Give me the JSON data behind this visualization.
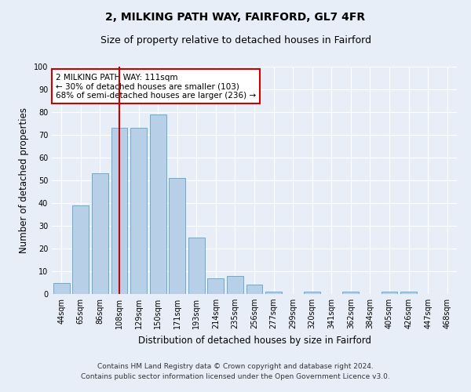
{
  "title_line1": "2, MILKING PATH WAY, FAIRFORD, GL7 4FR",
  "title_line2": "Size of property relative to detached houses in Fairford",
  "xlabel": "Distribution of detached houses by size in Fairford",
  "ylabel": "Number of detached properties",
  "footnote_line1": "Contains HM Land Registry data © Crown copyright and database right 2024.",
  "footnote_line2": "Contains public sector information licensed under the Open Government Licence v3.0.",
  "bar_labels": [
    "44sqm",
    "65sqm",
    "86sqm",
    "108sqm",
    "129sqm",
    "150sqm",
    "171sqm",
    "193sqm",
    "214sqm",
    "235sqm",
    "256sqm",
    "277sqm",
    "299sqm",
    "320sqm",
    "341sqm",
    "362sqm",
    "384sqm",
    "405sqm",
    "426sqm",
    "447sqm",
    "468sqm"
  ],
  "bar_values": [
    5,
    39,
    53,
    73,
    73,
    79,
    51,
    25,
    7,
    8,
    4,
    1,
    0,
    1,
    0,
    1,
    0,
    1,
    1,
    0,
    0
  ],
  "bar_color": "#b8cfe8",
  "bar_edge_color": "#6aaad4",
  "vline_x_index": 3,
  "vline_color": "#cc0000",
  "annotation_text": "2 MILKING PATH WAY: 111sqm\n← 30% of detached houses are smaller (103)\n68% of semi-detached houses are larger (236) →",
  "annotation_box_color": "#ffffff",
  "annotation_box_edge_color": "#cc0000",
  "ylim": [
    0,
    100
  ],
  "yticks": [
    0,
    10,
    20,
    30,
    40,
    50,
    60,
    70,
    80,
    90,
    100
  ],
  "bg_color": "#e8eef7",
  "plot_bg_color": "#e8eef7",
  "grid_color": "#ffffff",
  "title1_fontsize": 10,
  "title2_fontsize": 9,
  "xlabel_fontsize": 8.5,
  "ylabel_fontsize": 8.5,
  "tick_fontsize": 7,
  "annotation_fontsize": 7.5,
  "footnote_fontsize": 6.5
}
